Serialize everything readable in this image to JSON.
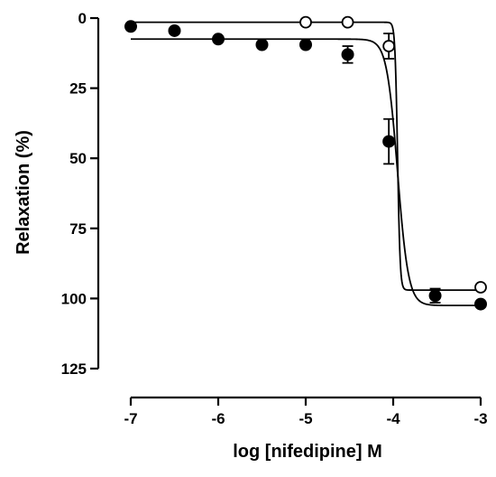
{
  "chart_data": {
    "type": "scatter",
    "xlabel": "log [nifedipine] M",
    "ylabel": "Relaxation (%)",
    "xlim": [
      -7,
      -3
    ],
    "ylim": [
      125,
      0
    ],
    "y_inverted": true,
    "grid": false,
    "x_ticks": [
      -7,
      -6,
      -5,
      -4,
      -3
    ],
    "x_tick_labels": [
      "-7",
      "-6",
      "-5",
      "-4",
      "-3"
    ],
    "y_ticks": [
      0,
      25,
      50,
      75,
      100,
      125
    ],
    "y_tick_labels": [
      "0",
      "25",
      "50",
      "75",
      "100",
      "125"
    ],
    "series": [
      {
        "marker": "filled-circle",
        "color": "#000000",
        "x": [
          -7,
          -6.5,
          -6,
          -5.5,
          -5,
          -4.52,
          -4.05,
          -3.52,
          -3
        ],
        "y": [
          3,
          4.5,
          7.5,
          9.5,
          9.5,
          13,
          44,
          99,
          102
        ],
        "yerr": [
          0,
          0,
          0,
          0,
          0,
          3,
          8,
          2.5,
          0
        ]
      },
      {
        "marker": "open-circle",
        "color": "#000000",
        "x": [
          -5,
          -4.52,
          -4.05,
          -3
        ],
        "y": [
          1.5,
          1.5,
          10,
          96
        ],
        "yerr": [
          0,
          0,
          4.5,
          0
        ]
      }
    ],
    "fits": [
      {
        "bottom": 7.5,
        "top": 102.5,
        "log_ec50": -3.95,
        "hill": 7
      },
      {
        "bottom": 1.5,
        "top": 97,
        "log_ec50": -3.95,
        "hill": 30
      }
    ]
  }
}
